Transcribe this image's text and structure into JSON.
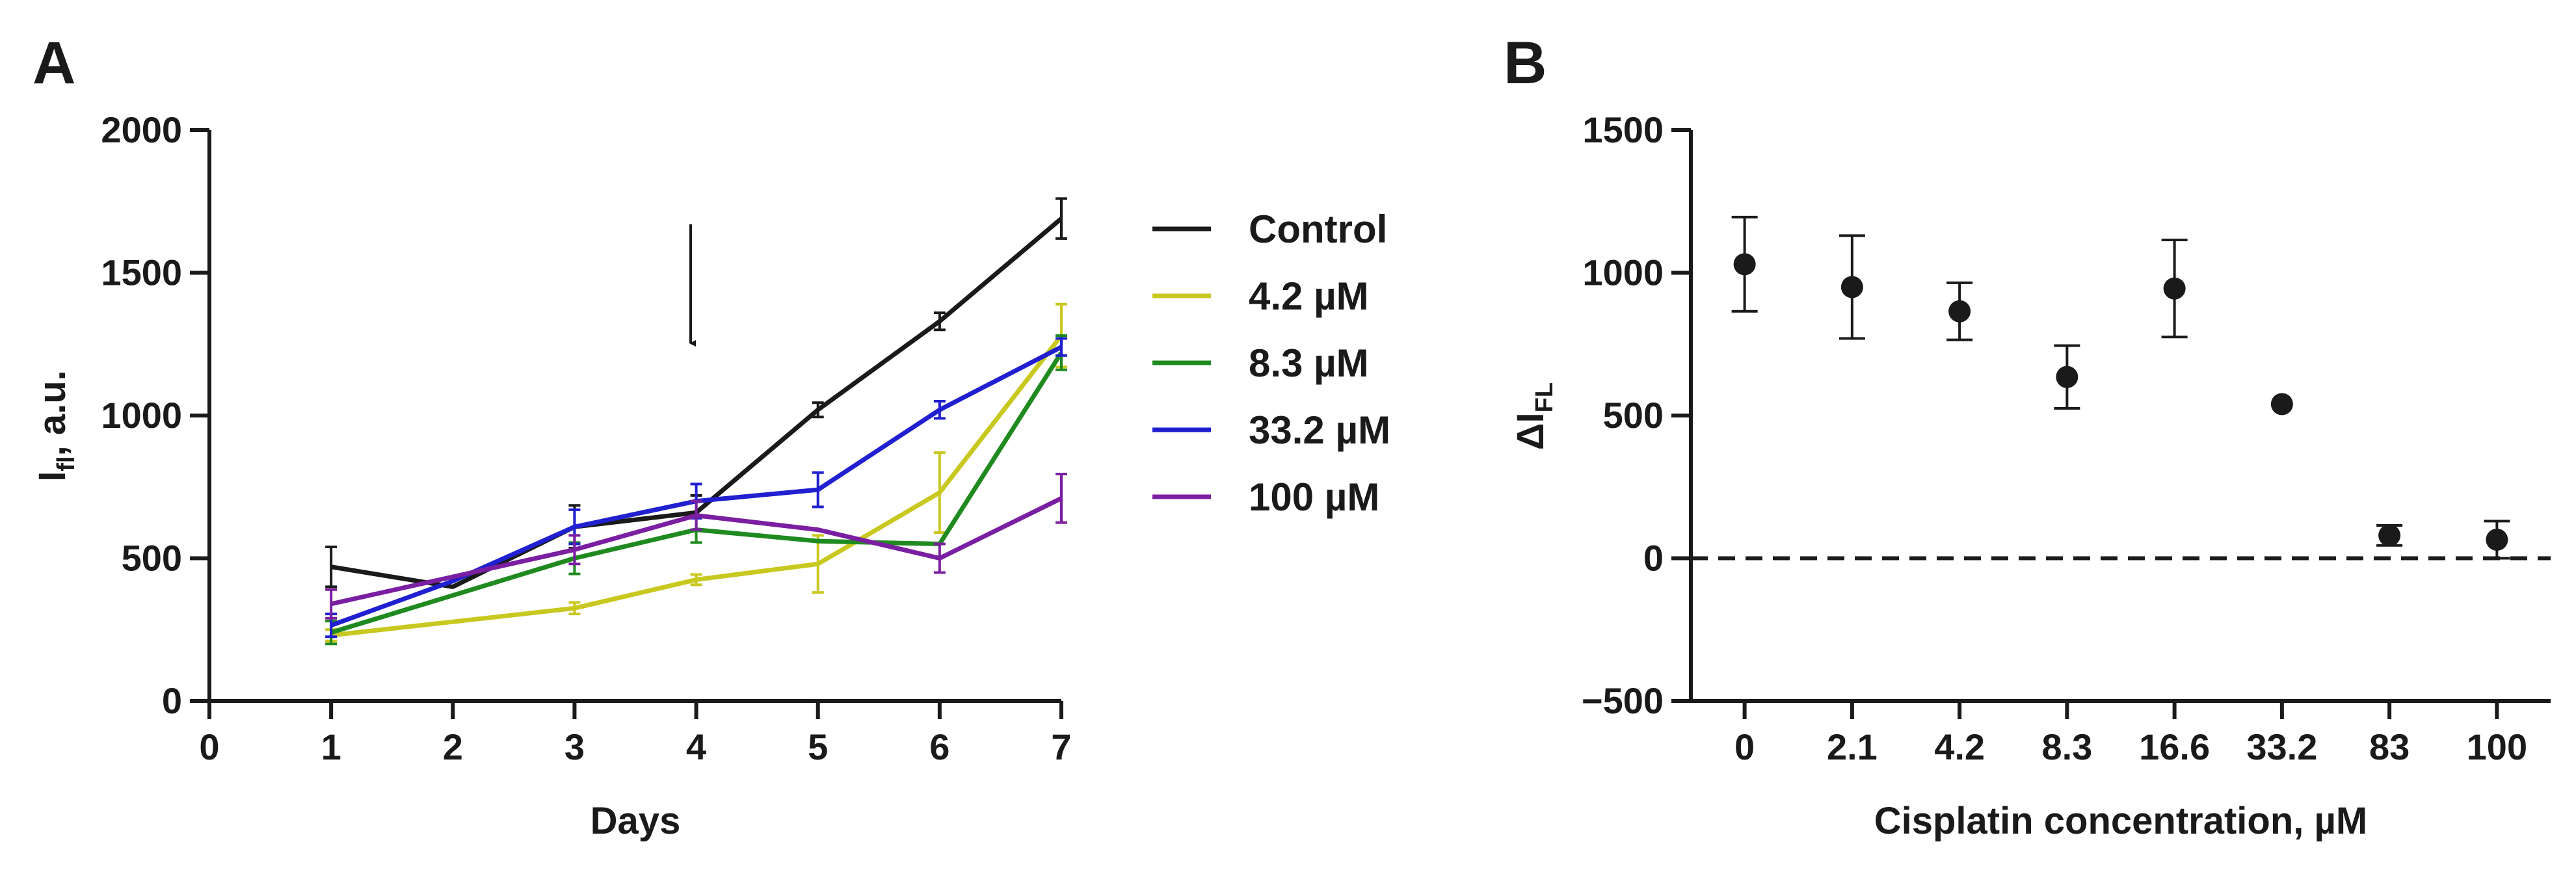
{
  "chart_data": [
    {
      "panel": "A",
      "type": "line",
      "xlabel": "Days",
      "ylabel_main": "I",
      "ylabel_sub": "fl",
      "ylabel_rest": ", a.u.",
      "xlim": [
        0,
        7
      ],
      "ylim": [
        0,
        2000
      ],
      "xticks": [
        "0",
        "1",
        "2",
        "3",
        "4",
        "5",
        "6",
        "7"
      ],
      "yticks": [
        "0",
        "500",
        "1000",
        "1500",
        "2000"
      ],
      "legend_position": "right",
      "annotation": "arrow at day 4",
      "x": [
        1,
        2,
        3,
        4,
        5,
        6,
        7
      ],
      "series": [
        {
          "name": "Control",
          "color": "#1a1a1a",
          "x": [
            1,
            2,
            3,
            4,
            5,
            6,
            7
          ],
          "values": [
            470,
            400,
            610,
            660,
            1020,
            1330,
            1690
          ],
          "errors": [
            70,
            0,
            75,
            60,
            25,
            30,
            70
          ]
        },
        {
          "name": "4.2 µM",
          "color": "#c8c820",
          "x": [
            1,
            3,
            4,
            5,
            6,
            7
          ],
          "values": [
            230,
            325,
            425,
            480,
            730,
            1280
          ],
          "errors": [
            20,
            20,
            18,
            100,
            140,
            110
          ]
        },
        {
          "name": "8.3 µM",
          "color": "#1f8a1f",
          "x": [
            1,
            3,
            4,
            5,
            6,
            7
          ],
          "values": [
            240,
            500,
            600,
            560,
            550,
            1220
          ],
          "errors": [
            40,
            55,
            45,
            0,
            0,
            60
          ]
        },
        {
          "name": "33.2 µM",
          "color": "#2020d0",
          "x": [
            1,
            2,
            3,
            4,
            5,
            6,
            7
          ],
          "values": [
            265,
            420,
            610,
            700,
            740,
            1020,
            1240
          ],
          "errors": [
            40,
            0,
            60,
            60,
            60,
            30,
            30
          ]
        },
        {
          "name": "100 µM",
          "color": "#7b1fa2",
          "x": [
            1,
            3,
            4,
            5,
            6,
            7
          ],
          "values": [
            340,
            530,
            650,
            600,
            500,
            710
          ],
          "errors": [
            50,
            50,
            50,
            0,
            50,
            85
          ]
        }
      ]
    },
    {
      "panel": "B",
      "type": "scatter",
      "xlabel": "Cisplatin concentration, µM",
      "ylabel_main": "ΔI",
      "ylabel_sub": "FL",
      "categories": [
        "0",
        "2.1",
        "4.2",
        "8.3",
        "16.6",
        "33.2",
        "83",
        "100"
      ],
      "values": [
        1030,
        950,
        865,
        635,
        945,
        540,
        80,
        65
      ],
      "errors": [
        165,
        180,
        100,
        110,
        170,
        0,
        35,
        65
      ],
      "ylim": [
        -500,
        1500
      ],
      "yticks": [
        "−500",
        "0",
        "500",
        "1000",
        "1500"
      ],
      "reference_line": 0,
      "reference_style": "dashed"
    }
  ]
}
